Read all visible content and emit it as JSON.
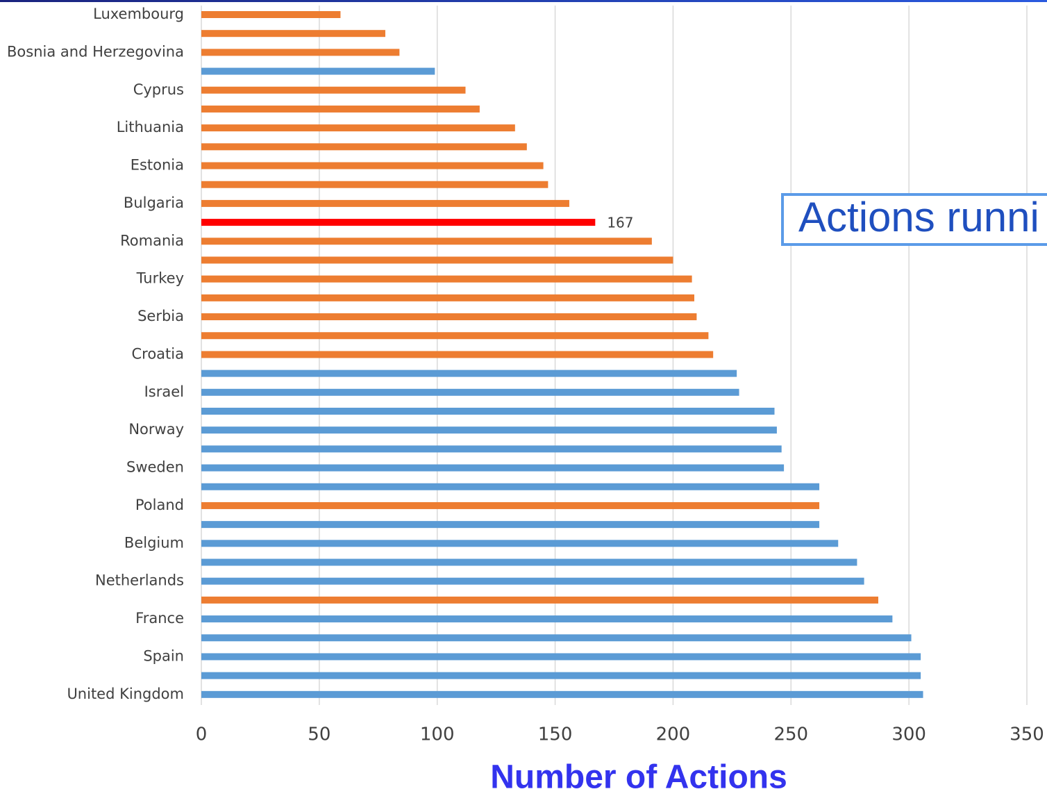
{
  "chart_data": {
    "type": "bar",
    "orientation": "horizontal",
    "x_label": "Number of Actions",
    "annotation": "Actions runni",
    "categories": [
      "Luxembourg",
      null,
      "Bosnia and Herzegovina",
      null,
      "Cyprus",
      null,
      "Lithuania",
      null,
      "Estonia",
      null,
      "Bulgaria",
      null,
      "Romania",
      null,
      "Turkey",
      null,
      "Serbia",
      null,
      "Croatia",
      null,
      "Israel",
      null,
      "Norway",
      null,
      "Sweden",
      null,
      "Poland",
      null,
      "Belgium",
      null,
      "Netherlands",
      null,
      "France",
      null,
      "Spain",
      null,
      "United Kingdom"
    ],
    "values": [
      59,
      78,
      84,
      99,
      112,
      118,
      133,
      138,
      145,
      147,
      156,
      167,
      191,
      200,
      208,
      209,
      210,
      215,
      217,
      227,
      228,
      243,
      244,
      246,
      247,
      262,
      262,
      262,
      270,
      278,
      281,
      287,
      293,
      301,
      305,
      305,
      306
    ],
    "value_labels": [
      null,
      null,
      null,
      null,
      null,
      null,
      null,
      null,
      null,
      null,
      null,
      "167",
      null,
      null,
      null,
      null,
      null,
      null,
      null,
      null,
      null,
      null,
      null,
      null,
      null,
      null,
      null,
      null,
      null,
      null,
      null,
      null,
      null,
      null,
      null,
      null,
      null
    ],
    "colors": [
      "#ed7d31",
      "#ed7d31",
      "#ed7d31",
      "#5b9bd5",
      "#ed7d31",
      "#ed7d31",
      "#ed7d31",
      "#ed7d31",
      "#ed7d31",
      "#ed7d31",
      "#ed7d31",
      "#ff0000",
      "#ed7d31",
      "#ed7d31",
      "#ed7d31",
      "#ed7d31",
      "#ed7d31",
      "#ed7d31",
      "#ed7d31",
      "#5b9bd5",
      "#5b9bd5",
      "#5b9bd5",
      "#5b9bd5",
      "#5b9bd5",
      "#5b9bd5",
      "#5b9bd5",
      "#ed7d31",
      "#5b9bd5",
      "#5b9bd5",
      "#5b9bd5",
      "#5b9bd5",
      "#ed7d31",
      "#5b9bd5",
      "#5b9bd5",
      "#5b9bd5",
      "#5b9bd5",
      "#5b9bd5"
    ],
    "xlim": [
      0,
      350
    ],
    "xticks": [
      0,
      50,
      100,
      150,
      200,
      250,
      300,
      350
    ],
    "grid": true
  }
}
